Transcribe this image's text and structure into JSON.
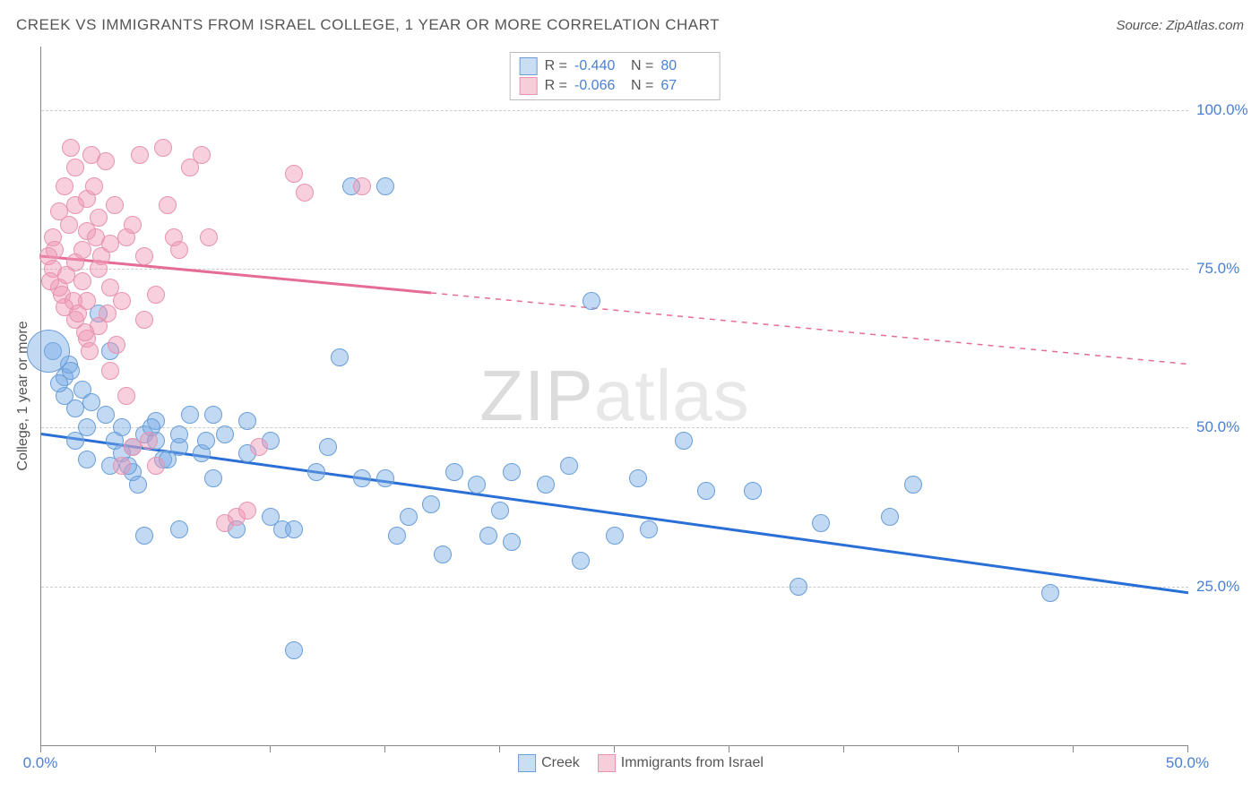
{
  "title": "CREEK VS IMMIGRANTS FROM ISRAEL COLLEGE, 1 YEAR OR MORE CORRELATION CHART",
  "source": "Source: ZipAtlas.com",
  "watermark": {
    "prefix": "ZIP",
    "suffix": "atlas"
  },
  "axis": {
    "y_title": "College, 1 year or more",
    "xlim": [
      0,
      50
    ],
    "ylim": [
      0,
      110
    ],
    "y_ticks": [
      25,
      50,
      75,
      100
    ],
    "y_tick_labels": [
      "25.0%",
      "50.0%",
      "75.0%",
      "100.0%"
    ],
    "x_ticks": [
      0,
      5,
      10,
      15,
      20,
      25,
      30,
      35,
      40,
      45,
      50
    ],
    "x_labels": [
      {
        "v": 0,
        "t": "0.0%"
      },
      {
        "v": 50,
        "t": "50.0%"
      }
    ],
    "grid_color": "#cccccc",
    "label_color": "#4a7fd4",
    "label_fontsize": 17
  },
  "series": [
    {
      "name": "Creek",
      "fill": "rgba(120,170,230,0.45)",
      "stroke": "#6a9ed8",
      "line_color": "#2a6fd6",
      "swatch_fill": "#c9ddf3",
      "swatch_border": "#6a9ed8",
      "marker_radius": 10,
      "stats": {
        "R": "-0.440",
        "N": "80"
      },
      "trend": {
        "x1": 0,
        "y1": 49,
        "x2": 50,
        "y2": 24,
        "solid_until_x": 50
      },
      "points": [
        [
          0.5,
          62
        ],
        [
          1,
          55
        ],
        [
          1,
          58
        ],
        [
          1.2,
          60
        ],
        [
          1.5,
          53
        ],
        [
          1.5,
          48
        ],
        [
          1.8,
          56
        ],
        [
          2,
          50
        ],
        [
          2,
          45
        ],
        [
          2.5,
          68
        ],
        [
          3,
          62
        ],
        [
          3,
          44
        ],
        [
          3.5,
          46
        ],
        [
          3.5,
          50
        ],
        [
          4,
          47
        ],
        [
          4,
          43
        ],
        [
          4.5,
          33
        ],
        [
          4.5,
          49
        ],
        [
          5,
          48
        ],
        [
          5,
          51
        ],
        [
          5.3,
          45
        ],
        [
          6,
          47
        ],
        [
          6,
          49
        ],
        [
          6,
          34
        ],
        [
          7,
          46
        ],
        [
          7.5,
          52
        ],
        [
          7.5,
          42
        ],
        [
          8,
          49
        ],
        [
          8.5,
          34
        ],
        [
          9,
          51
        ],
        [
          9,
          46
        ],
        [
          10,
          36
        ],
        [
          10,
          48
        ],
        [
          10.5,
          34
        ],
        [
          11,
          34
        ],
        [
          11,
          15
        ],
        [
          12,
          43
        ],
        [
          12.5,
          47
        ],
        [
          13,
          61
        ],
        [
          13.5,
          88
        ],
        [
          14,
          42
        ],
        [
          15,
          42
        ],
        [
          15,
          88
        ],
        [
          15.5,
          33
        ],
        [
          16,
          36
        ],
        [
          17,
          38
        ],
        [
          17.5,
          30
        ],
        [
          18,
          43
        ],
        [
          19,
          41
        ],
        [
          19.5,
          33
        ],
        [
          20,
          37
        ],
        [
          20.5,
          32
        ],
        [
          20.5,
          43
        ],
        [
          22,
          41
        ],
        [
          23,
          44
        ],
        [
          23.5,
          29
        ],
        [
          24,
          70
        ],
        [
          25,
          33
        ],
        [
          26,
          42
        ],
        [
          26.5,
          34
        ],
        [
          28,
          48
        ],
        [
          29,
          40
        ],
        [
          31,
          40
        ],
        [
          33,
          25
        ],
        [
          34,
          35
        ],
        [
          37,
          36
        ],
        [
          38,
          41
        ],
        [
          44,
          24
        ],
        [
          0.3,
          62,
          24
        ],
        [
          0.8,
          57
        ],
        [
          1.3,
          59
        ],
        [
          2.2,
          54
        ],
        [
          2.8,
          52
        ],
        [
          3.2,
          48
        ],
        [
          3.8,
          44
        ],
        [
          4.2,
          41
        ],
        [
          4.8,
          50
        ],
        [
          5.5,
          45
        ],
        [
          6.5,
          52
        ],
        [
          7.2,
          48
        ]
      ]
    },
    {
      "name": "Immigrants from Israel",
      "fill": "rgba(240,150,180,0.45)",
      "stroke": "#e793b0",
      "line_color": "#e56d94",
      "swatch_fill": "#f6cdd9",
      "swatch_border": "#e793b0",
      "marker_radius": 10,
      "stats": {
        "R": "-0.066",
        "N": "67"
      },
      "trend": {
        "x1": 0,
        "y1": 77,
        "x2": 50,
        "y2": 60,
        "solid_until_x": 17
      },
      "points": [
        [
          0.3,
          77
        ],
        [
          0.5,
          75
        ],
        [
          0.5,
          80
        ],
        [
          0.8,
          84
        ],
        [
          0.8,
          72
        ],
        [
          1,
          69
        ],
        [
          1,
          88
        ],
        [
          1.2,
          82
        ],
        [
          1.3,
          94
        ],
        [
          1.5,
          91
        ],
        [
          1.5,
          85
        ],
        [
          1.5,
          76
        ],
        [
          1.5,
          67
        ],
        [
          1.8,
          78
        ],
        [
          1.8,
          73
        ],
        [
          2,
          81
        ],
        [
          2,
          86
        ],
        [
          2,
          70
        ],
        [
          2,
          64
        ],
        [
          2.2,
          93
        ],
        [
          2.3,
          88
        ],
        [
          2.5,
          83
        ],
        [
          2.5,
          75
        ],
        [
          2.5,
          66
        ],
        [
          2.8,
          92
        ],
        [
          3,
          79
        ],
        [
          3,
          72
        ],
        [
          3,
          59
        ],
        [
          3.2,
          85
        ],
        [
          3.5,
          70
        ],
        [
          3.5,
          44
        ],
        [
          3.7,
          80
        ],
        [
          3.7,
          55
        ],
        [
          4,
          82
        ],
        [
          4,
          47
        ],
        [
          4.3,
          93
        ],
        [
          4.5,
          77
        ],
        [
          4.5,
          67
        ],
        [
          4.7,
          48
        ],
        [
          5,
          44
        ],
        [
          5,
          71
        ],
        [
          5.3,
          94
        ],
        [
          5.5,
          85
        ],
        [
          5.8,
          80
        ],
        [
          6,
          78
        ],
        [
          6.5,
          91
        ],
        [
          7,
          93
        ],
        [
          7.3,
          80
        ],
        [
          8,
          35
        ],
        [
          8.5,
          36
        ],
        [
          9,
          37
        ],
        [
          9.5,
          47
        ],
        [
          11,
          90
        ],
        [
          11.5,
          87
        ],
        [
          14,
          88
        ],
        [
          0.4,
          73
        ],
        [
          0.6,
          78
        ],
        [
          0.9,
          71
        ],
        [
          1.1,
          74
        ],
        [
          1.4,
          70
        ],
        [
          1.6,
          68
        ],
        [
          1.9,
          65
        ],
        [
          2.1,
          62
        ],
        [
          2.4,
          80
        ],
        [
          2.6,
          77
        ],
        [
          2.9,
          68
        ],
        [
          3.3,
          63
        ]
      ]
    }
  ],
  "stats_legend_labels": {
    "R": "R =",
    "N": "N ="
  },
  "colors": {
    "title": "#555555",
    "background": "#ffffff",
    "axis_line": "#888888"
  }
}
